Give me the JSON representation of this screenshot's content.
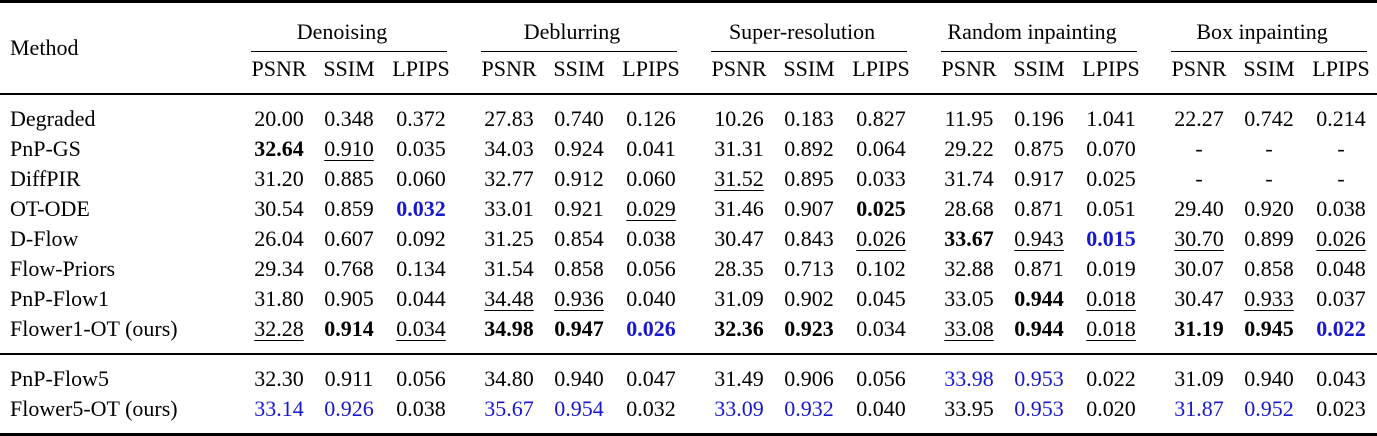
{
  "table": {
    "method_header": "Method",
    "sub_headers": [
      "PSNR",
      "SSIM",
      "LPIPS"
    ],
    "groups": [
      "Denoising",
      "Deblurring",
      "Super-resolution",
      "Random inpainting",
      "Box inpainting"
    ],
    "colors": {
      "highlight_blue": "#1717cf",
      "text": "#000000",
      "rule": "#000000"
    },
    "legend": {
      "bold_means": "best",
      "underline_means": "second-best",
      "blue_means": "highlighted value"
    },
    "sections": [
      {
        "rows": [
          {
            "method": "Degraded",
            "cells": [
              [
                "20.00",
                ""
              ],
              [
                "0.348",
                ""
              ],
              [
                "0.372",
                ""
              ],
              [
                "27.83",
                ""
              ],
              [
                "0.740",
                ""
              ],
              [
                "0.126",
                ""
              ],
              [
                "10.26",
                ""
              ],
              [
                "0.183",
                ""
              ],
              [
                "0.827",
                ""
              ],
              [
                "11.95",
                ""
              ],
              [
                "0.196",
                ""
              ],
              [
                "1.041",
                ""
              ],
              [
                "22.27",
                ""
              ],
              [
                "0.742",
                ""
              ],
              [
                "0.214",
                ""
              ]
            ]
          },
          {
            "method": "PnP-GS",
            "cells": [
              [
                "32.64",
                "b"
              ],
              [
                "0.910",
                "u"
              ],
              [
                "0.035",
                ""
              ],
              [
                "34.03",
                ""
              ],
              [
                "0.924",
                ""
              ],
              [
                "0.041",
                ""
              ],
              [
                "31.31",
                ""
              ],
              [
                "0.892",
                ""
              ],
              [
                "0.064",
                ""
              ],
              [
                "29.22",
                ""
              ],
              [
                "0.875",
                ""
              ],
              [
                "0.070",
                ""
              ],
              [
                "-",
                ""
              ],
              [
                "-",
                ""
              ],
              [
                "-",
                ""
              ]
            ]
          },
          {
            "method": "DiffPIR",
            "cells": [
              [
                "31.20",
                ""
              ],
              [
                "0.885",
                ""
              ],
              [
                "0.060",
                ""
              ],
              [
                "32.77",
                ""
              ],
              [
                "0.912",
                ""
              ],
              [
                "0.060",
                ""
              ],
              [
                "31.52",
                "u"
              ],
              [
                "0.895",
                ""
              ],
              [
                "0.033",
                ""
              ],
              [
                "31.74",
                ""
              ],
              [
                "0.917",
                ""
              ],
              [
                "0.025",
                ""
              ],
              [
                "-",
                ""
              ],
              [
                "-",
                ""
              ],
              [
                "-",
                ""
              ]
            ]
          },
          {
            "method": "OT-ODE",
            "cells": [
              [
                "30.54",
                ""
              ],
              [
                "0.859",
                ""
              ],
              [
                "0.032",
                "bc"
              ],
              [
                "33.01",
                ""
              ],
              [
                "0.921",
                ""
              ],
              [
                "0.029",
                "u"
              ],
              [
                "31.46",
                ""
              ],
              [
                "0.907",
                ""
              ],
              [
                "0.025",
                "b"
              ],
              [
                "28.68",
                ""
              ],
              [
                "0.871",
                ""
              ],
              [
                "0.051",
                ""
              ],
              [
                "29.40",
                ""
              ],
              [
                "0.920",
                ""
              ],
              [
                "0.038",
                ""
              ]
            ]
          },
          {
            "method": "D-Flow",
            "cells": [
              [
                "26.04",
                ""
              ],
              [
                "0.607",
                ""
              ],
              [
                "0.092",
                ""
              ],
              [
                "31.25",
                ""
              ],
              [
                "0.854",
                ""
              ],
              [
                "0.038",
                ""
              ],
              [
                "30.47",
                ""
              ],
              [
                "0.843",
                ""
              ],
              [
                "0.026",
                "u"
              ],
              [
                "33.67",
                "b"
              ],
              [
                "0.943",
                "u"
              ],
              [
                "0.015",
                "bc"
              ],
              [
                "30.70",
                "u"
              ],
              [
                "0.899",
                ""
              ],
              [
                "0.026",
                "u"
              ]
            ]
          },
          {
            "method": "Flow-Priors",
            "cells": [
              [
                "29.34",
                ""
              ],
              [
                "0.768",
                ""
              ],
              [
                "0.134",
                ""
              ],
              [
                "31.54",
                ""
              ],
              [
                "0.858",
                ""
              ],
              [
                "0.056",
                ""
              ],
              [
                "28.35",
                ""
              ],
              [
                "0.713",
                ""
              ],
              [
                "0.102",
                ""
              ],
              [
                "32.88",
                ""
              ],
              [
                "0.871",
                ""
              ],
              [
                "0.019",
                ""
              ],
              [
                "30.07",
                ""
              ],
              [
                "0.858",
                ""
              ],
              [
                "0.048",
                ""
              ]
            ]
          },
          {
            "method": "PnP-Flow1",
            "cells": [
              [
                "31.80",
                ""
              ],
              [
                "0.905",
                ""
              ],
              [
                "0.044",
                ""
              ],
              [
                "34.48",
                "u"
              ],
              [
                "0.936",
                "u"
              ],
              [
                "0.040",
                ""
              ],
              [
                "31.09",
                ""
              ],
              [
                "0.902",
                ""
              ],
              [
                "0.045",
                ""
              ],
              [
                "33.05",
                ""
              ],
              [
                "0.944",
                "b"
              ],
              [
                "0.018",
                "u"
              ],
              [
                "30.47",
                ""
              ],
              [
                "0.933",
                "u"
              ],
              [
                "0.037",
                ""
              ]
            ]
          },
          {
            "method": "Flower1-OT (ours)",
            "cells": [
              [
                "32.28",
                "u"
              ],
              [
                "0.914",
                "b"
              ],
              [
                "0.034",
                "u"
              ],
              [
                "34.98",
                "b"
              ],
              [
                "0.947",
                "b"
              ],
              [
                "0.026",
                "bc"
              ],
              [
                "32.36",
                "b"
              ],
              [
                "0.923",
                "b"
              ],
              [
                "0.034",
                ""
              ],
              [
                "33.08",
                "u"
              ],
              [
                "0.944",
                "b"
              ],
              [
                "0.018",
                "u"
              ],
              [
                "31.19",
                "b"
              ],
              [
                "0.945",
                "b"
              ],
              [
                "0.022",
                "bc"
              ]
            ]
          }
        ]
      },
      {
        "rows": [
          {
            "method": "PnP-Flow5",
            "cells": [
              [
                "32.30",
                ""
              ],
              [
                "0.911",
                ""
              ],
              [
                "0.056",
                ""
              ],
              [
                "34.80",
                ""
              ],
              [
                "0.940",
                ""
              ],
              [
                "0.047",
                ""
              ],
              [
                "31.49",
                ""
              ],
              [
                "0.906",
                ""
              ],
              [
                "0.056",
                ""
              ],
              [
                "33.98",
                "c"
              ],
              [
                "0.953",
                "c"
              ],
              [
                "0.022",
                ""
              ],
              [
                "31.09",
                ""
              ],
              [
                "0.940",
                ""
              ],
              [
                "0.043",
                ""
              ]
            ]
          },
          {
            "method": "Flower5-OT (ours)",
            "cells": [
              [
                "33.14",
                "c"
              ],
              [
                "0.926",
                "c"
              ],
              [
                "0.038",
                ""
              ],
              [
                "35.67",
                "c"
              ],
              [
                "0.954",
                "c"
              ],
              [
                "0.032",
                ""
              ],
              [
                "33.09",
                "c"
              ],
              [
                "0.932",
                "c"
              ],
              [
                "0.040",
                ""
              ],
              [
                "33.95",
                ""
              ],
              [
                "0.953",
                "c"
              ],
              [
                "0.020",
                ""
              ],
              [
                "31.87",
                "c"
              ],
              [
                "0.952",
                "c"
              ],
              [
                "0.023",
                ""
              ]
            ]
          }
        ]
      }
    ]
  }
}
